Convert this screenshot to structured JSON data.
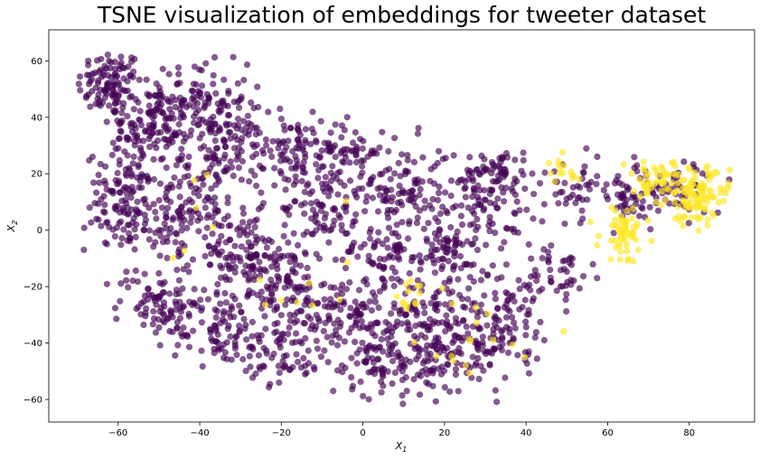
{
  "chart_data": {
    "type": "scatter",
    "title": "TSNE visualization of embeddings for tweeter dataset",
    "xlabel": "X",
    "xlabel_sub": "1",
    "ylabel": "X",
    "ylabel_sub": "2",
    "xlim": [
      -77,
      96
    ],
    "ylim": [
      -68,
      71
    ],
    "xticks": [
      -60,
      -40,
      -20,
      0,
      20,
      40,
      60,
      80
    ],
    "yticks": [
      -60,
      -40,
      -20,
      0,
      20,
      40,
      60
    ],
    "xtick_labels": [
      "−60",
      "−40",
      "−20",
      "0",
      "20",
      "40",
      "60",
      "80"
    ],
    "ytick_labels": [
      "−60",
      "−40",
      "−20",
      "0",
      "20",
      "40",
      "60"
    ],
    "grid": false,
    "colors": {
      "class_0": "#440154",
      "class_1": "#fde725"
    },
    "marker_alpha": 0.65,
    "series": [
      {
        "class": 0,
        "clusters": [
          {
            "center": [
              -62,
              52
            ],
            "spread": [
              4,
              6
            ],
            "n": 110
          },
          {
            "center": [
              -52,
              36
            ],
            "spread": [
              5,
              8
            ],
            "n": 120
          },
          {
            "center": [
              -40,
              45
            ],
            "spread": [
              6,
              7
            ],
            "n": 120
          },
          {
            "center": [
              -34,
              28
            ],
            "spread": [
              5,
              7
            ],
            "n": 100
          },
          {
            "center": [
              -58,
              10
            ],
            "spread": [
              5,
              9
            ],
            "n": 120
          },
          {
            "center": [
              -44,
              5
            ],
            "spread": [
              6,
              9
            ],
            "n": 130
          },
          {
            "center": [
              -30,
              -10
            ],
            "spread": [
              6,
              8
            ],
            "n": 110
          },
          {
            "center": [
              -50,
              -25
            ],
            "spread": [
              5,
              6
            ],
            "n": 80
          },
          {
            "center": [
              -35,
              -35
            ],
            "spread": [
              6,
              6
            ],
            "n": 90
          },
          {
            "center": [
              -20,
              -20
            ],
            "spread": [
              5,
              8
            ],
            "n": 90
          },
          {
            "center": [
              -20,
              -45
            ],
            "spread": [
              5,
              5
            ],
            "n": 60
          },
          {
            "center": [
              -18,
              30
            ],
            "spread": [
              4,
              6
            ],
            "n": 70
          },
          {
            "center": [
              -10,
              8
            ],
            "spread": [
              5,
              8
            ],
            "n": 90
          },
          {
            "center": [
              -5,
              28
            ],
            "spread": [
              5,
              5
            ],
            "n": 70
          },
          {
            "center": [
              5,
              -8
            ],
            "spread": [
              6,
              6
            ],
            "n": 80
          },
          {
            "center": [
              10,
              15
            ],
            "spread": [
              6,
              8
            ],
            "n": 110
          },
          {
            "center": [
              -5,
              -30
            ],
            "spread": [
              6,
              7
            ],
            "n": 100
          },
          {
            "center": [
              5,
              -45
            ],
            "spread": [
              7,
              7
            ],
            "n": 120
          },
          {
            "center": [
              15,
              -30
            ],
            "spread": [
              6,
              7
            ],
            "n": 100
          },
          {
            "center": [
              25,
              -45
            ],
            "spread": [
              6,
              6
            ],
            "n": 90
          },
          {
            "center": [
              30,
              10
            ],
            "spread": [
              6,
              9
            ],
            "n": 100
          },
          {
            "center": [
              20,
              -10
            ],
            "spread": [
              5,
              6
            ],
            "n": 60
          },
          {
            "center": [
              35,
              -30
            ],
            "spread": [
              5,
              8
            ],
            "n": 90
          },
          {
            "center": [
              33,
              20
            ],
            "spread": [
              4,
              4
            ],
            "n": 50
          },
          {
            "center": [
              48,
              -15
            ],
            "spread": [
              4,
              6
            ],
            "n": 50
          },
          {
            "center": [
              52,
              15
            ],
            "spread": [
              4,
              5
            ],
            "n": 40
          },
          {
            "center": [
              65,
              10
            ],
            "spread": [
              5,
              6
            ],
            "n": 50
          },
          {
            "center": [
              78,
              15
            ],
            "spread": [
              5,
              5
            ],
            "n": 50
          }
        ]
      },
      {
        "class": 1,
        "clusters": [
          {
            "center": [
              82,
              12
            ],
            "spread": [
              4,
              5
            ],
            "n": 110
          },
          {
            "center": [
              72,
              18
            ],
            "spread": [
              4,
              3
            ],
            "n": 50
          },
          {
            "center": [
              64,
              -1
            ],
            "spread": [
              3,
              5
            ],
            "n": 60
          },
          {
            "center": [
              48,
              20
            ],
            "spread": [
              3,
              3
            ],
            "n": 15
          },
          {
            "center": [
              12,
              -24
            ],
            "spread": [
              4,
              3
            ],
            "n": 15
          },
          {
            "center": [
              30,
              -40
            ],
            "spread": [
              8,
              8
            ],
            "n": 15
          },
          {
            "center": [
              -20,
              0
            ],
            "spread": [
              20,
              25
            ],
            "n": 15
          }
        ]
      }
    ]
  }
}
